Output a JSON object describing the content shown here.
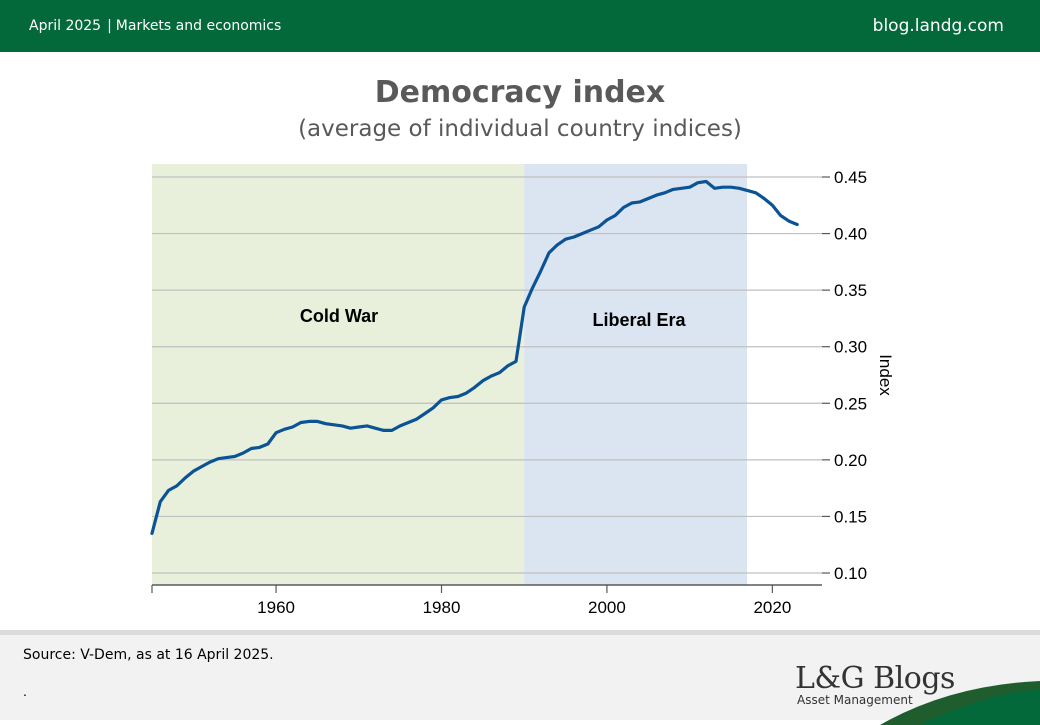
{
  "header": {
    "date": "April 2025",
    "separator": "|",
    "category": "Markets and economics",
    "site": "blog.landg.com"
  },
  "colors": {
    "header_bg": "#04693a",
    "cold_war_band": "#e8f0dc",
    "liberal_era_band": "#dbe5f1",
    "line": "#0b5394"
  },
  "chart_data": {
    "type": "line",
    "title": "Democracy index",
    "subtitle": "(average of individual country indices)",
    "xlabel": "",
    "ylabel": "Index",
    "xlim": [
      1945,
      2026
    ],
    "ylim": [
      0.1,
      0.46
    ],
    "x_ticks": [
      "1960",
      "1980",
      "2000",
      "2020"
    ],
    "y_ticks": [
      "0.10",
      "0.15",
      "0.20",
      "0.25",
      "0.30",
      "0.35",
      "0.40",
      "0.45"
    ],
    "grid": true,
    "regions": [
      {
        "label": "Cold War",
        "start": 1945,
        "end": 1990,
        "color": "#e8f0dc"
      },
      {
        "label": "Liberal Era",
        "start": 1990,
        "end": 2017,
        "color": "#dbe5f1"
      }
    ],
    "series": [
      {
        "name": "",
        "x": [
          1945,
          1946,
          1947,
          1948,
          1949,
          1950,
          1951,
          1952,
          1953,
          1954,
          1955,
          1956,
          1957,
          1958,
          1959,
          1960,
          1961,
          1962,
          1963,
          1964,
          1965,
          1966,
          1967,
          1968,
          1969,
          1970,
          1971,
          1972,
          1973,
          1974,
          1975,
          1976,
          1977,
          1978,
          1979,
          1980,
          1981,
          1982,
          1983,
          1984,
          1985,
          1986,
          1987,
          1988,
          1989,
          1990,
          1991,
          1992,
          1993,
          1994,
          1995,
          1996,
          1997,
          1998,
          1999,
          2000,
          2001,
          2002,
          2003,
          2004,
          2005,
          2006,
          2007,
          2008,
          2009,
          2010,
          2011,
          2012,
          2013,
          2014,
          2015,
          2016,
          2017,
          2018,
          2019,
          2020,
          2021,
          2022,
          2023
        ],
        "y": [
          0.135,
          0.163,
          0.173,
          0.177,
          0.184,
          0.19,
          0.194,
          0.198,
          0.201,
          0.202,
          0.203,
          0.206,
          0.21,
          0.211,
          0.214,
          0.224,
          0.227,
          0.229,
          0.233,
          0.234,
          0.234,
          0.232,
          0.231,
          0.23,
          0.228,
          0.229,
          0.23,
          0.228,
          0.226,
          0.226,
          0.23,
          0.233,
          0.236,
          0.241,
          0.246,
          0.253,
          0.255,
          0.256,
          0.259,
          0.264,
          0.27,
          0.274,
          0.277,
          0.283,
          0.287,
          0.335,
          0.352,
          0.367,
          0.383,
          0.39,
          0.395,
          0.397,
          0.4,
          0.403,
          0.406,
          0.412,
          0.416,
          0.423,
          0.427,
          0.428,
          0.431,
          0.434,
          0.436,
          0.439,
          0.44,
          0.441,
          0.445,
          0.446,
          0.44,
          0.441,
          0.441,
          0.44,
          0.438,
          0.436,
          0.431,
          0.425,
          0.416,
          0.411,
          0.408
        ]
      }
    ]
  },
  "footer": {
    "source": "Source: V-Dem, as at 16 April 2025.",
    "note": ".",
    "brand_name": "L&G Blogs",
    "brand_sub": "Asset Management"
  }
}
